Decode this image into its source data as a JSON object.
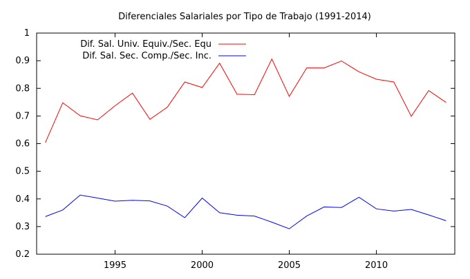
{
  "chart_data": {
    "type": "line",
    "title": "Diferenciales Salariales por Tipo de Trabajo (1991-2014)",
    "xlabel": "",
    "ylabel": "",
    "xlim": [
      1990.5,
      2014.5
    ],
    "ylim": [
      0.2,
      1.0
    ],
    "x_ticks": [
      1995,
      2000,
      2005,
      2010
    ],
    "y_ticks": [
      0.2,
      0.3,
      0.4,
      0.5,
      0.6,
      0.7,
      0.8,
      0.9,
      1.0
    ],
    "y_tick_labels": [
      "0.2",
      "0.3",
      "0.4",
      "0.5",
      "0.6",
      "0.7",
      "0.8",
      "0.9",
      "1"
    ],
    "grid": false,
    "legend_position": "top-left",
    "x": [
      1991,
      1992,
      1993,
      1994,
      1995,
      1996,
      1997,
      1998,
      1999,
      2000,
      2001,
      2002,
      2003,
      2004,
      2005,
      2006,
      2007,
      2008,
      2009,
      2010,
      2011,
      2012,
      2013,
      2014
    ],
    "series": [
      {
        "name": "Dif. Sal. Univ. Equiv./Sec. Equ",
        "color": "#ff0000",
        "values": [
          0.604,
          0.748,
          0.701,
          0.686,
          0.737,
          0.783,
          0.688,
          0.732,
          0.823,
          0.803,
          0.891,
          0.779,
          0.777,
          0.906,
          0.771,
          0.874,
          0.874,
          0.899,
          0.86,
          0.833,
          0.823,
          0.699,
          0.792,
          0.749
        ]
      },
      {
        "name": "Dif. Sal. Sec. Comp./Sec. Inc.",
        "color": "#0000ff",
        "values": [
          0.336,
          0.36,
          0.414,
          0.403,
          0.392,
          0.395,
          0.393,
          0.374,
          0.332,
          0.403,
          0.35,
          0.341,
          0.338,
          0.316,
          0.292,
          0.338,
          0.371,
          0.369,
          0.406,
          0.364,
          0.356,
          0.362,
          0.342,
          0.321
        ]
      }
    ]
  }
}
